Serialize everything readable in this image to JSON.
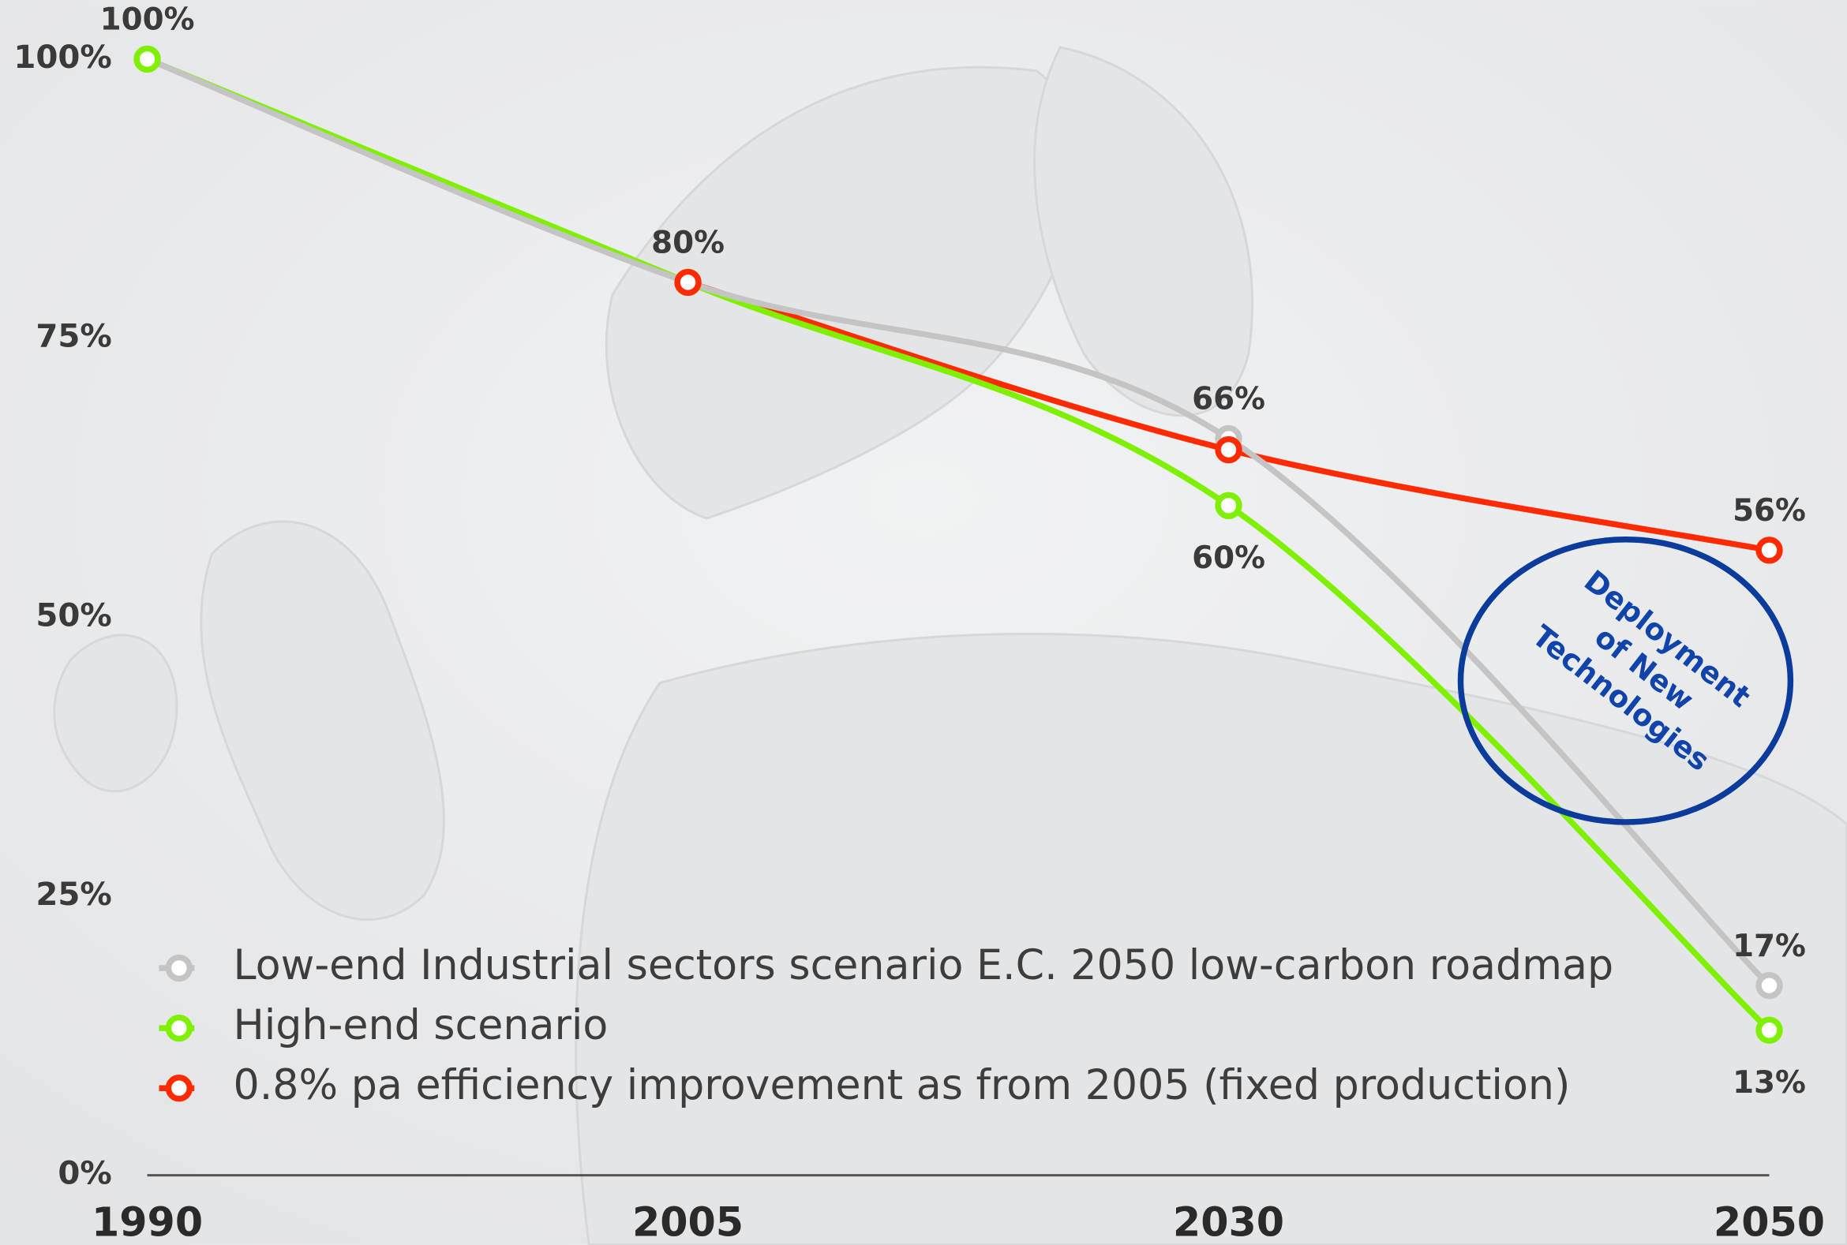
{
  "chart_data": {
    "type": "line",
    "categories": [
      "1990",
      "2005",
      "2030",
      "2050"
    ],
    "series": [
      {
        "name": "Low-end Industrial sectors scenario E.C. 2050 low-carbon roadmap",
        "color": "#c4c4c4",
        "values": [
          100,
          80,
          66,
          17
        ],
        "value_labels": [
          "100%",
          "80%",
          "66%",
          "17%"
        ],
        "label_side": "above"
      },
      {
        "name": "High-end scenario",
        "color": "#7ff000",
        "values": [
          100,
          80,
          60,
          13
        ],
        "value_labels": [
          null,
          null,
          "60%",
          "13%"
        ],
        "label_side": "below"
      },
      {
        "name": "0.8% pa efficiency improvement as from 2005 (fixed production)",
        "color": "#ff2a00",
        "values": [
          null,
          80,
          65,
          56
        ],
        "value_labels": [
          null,
          null,
          null,
          "56%"
        ],
        "label_side": "above"
      }
    ],
    "ylim": [
      0,
      100
    ],
    "yticks": [
      {
        "value": 0,
        "label": "0%"
      },
      {
        "value": 25,
        "label": "25%"
      },
      {
        "value": 50,
        "label": "50%"
      },
      {
        "value": 75,
        "label": "75%"
      },
      {
        "value": 100,
        "label": "100%"
      }
    ],
    "grid": false,
    "legend": "bottom-left",
    "annotation": [
      "Deployment",
      "of New",
      "Technologies"
    ]
  }
}
